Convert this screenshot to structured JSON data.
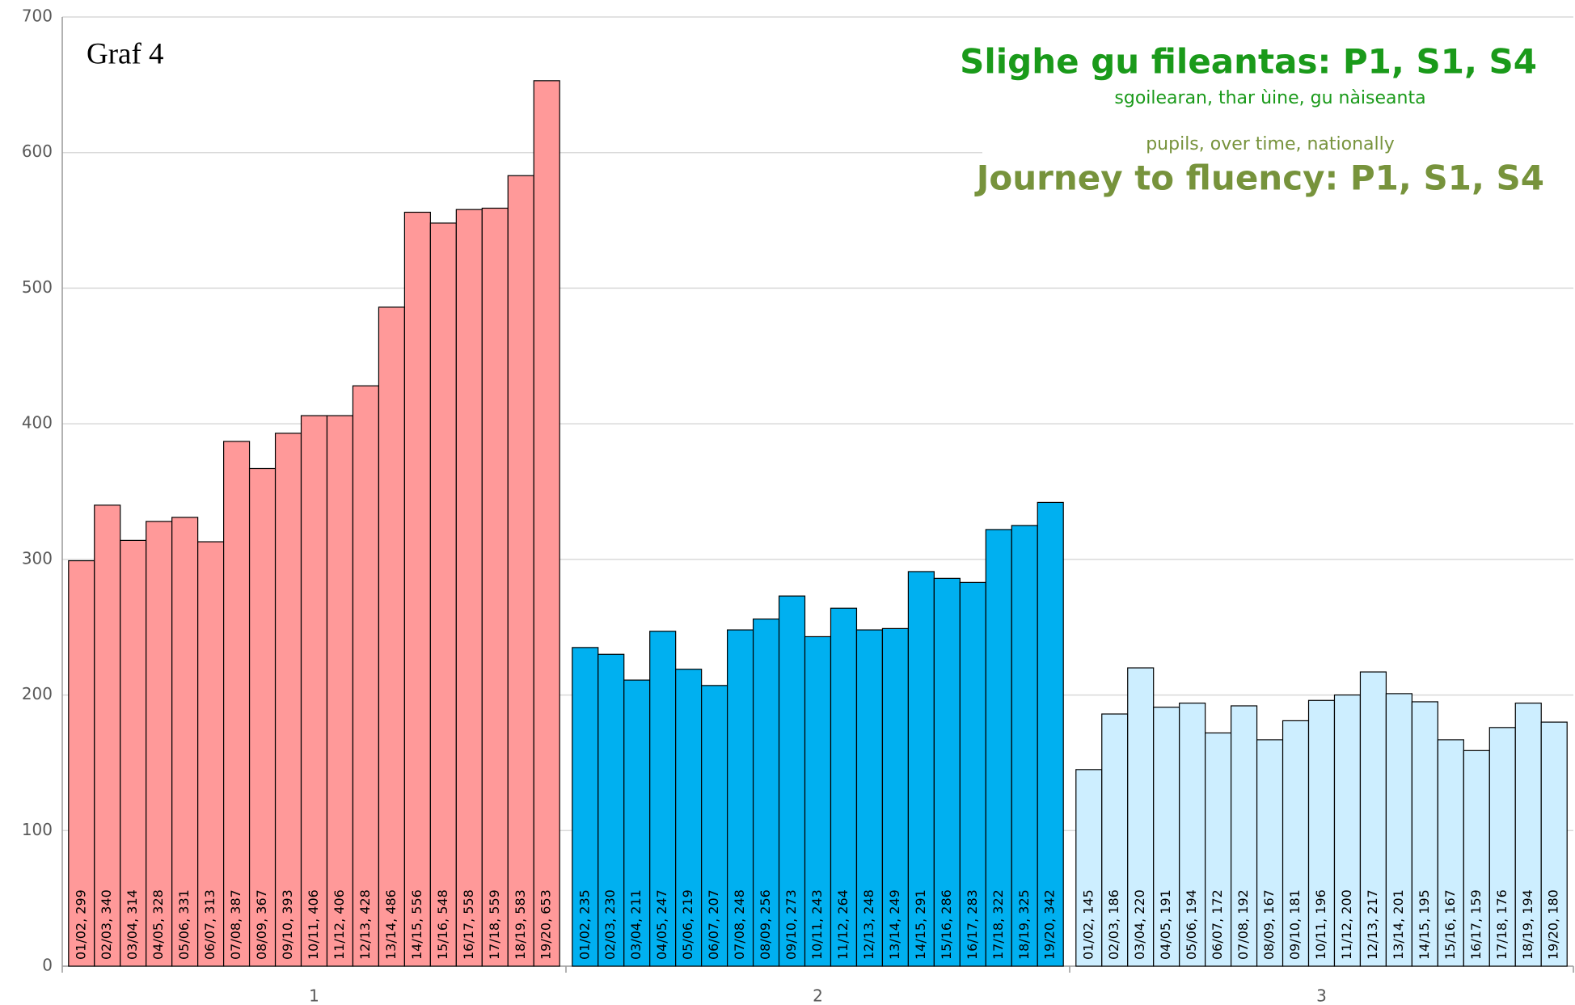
{
  "chart_data": {
    "type": "bar",
    "corner_label": "Graf 4",
    "title": "Slighe gu fileantas: P1, S1, S4",
    "subtitle": "sgoilearan, thar ùine, gu nàiseanta",
    "subtitle_en": "pupils, over time, nationally",
    "title_en": "Journey to fluency: P1, S1, S4",
    "categories": [
      "1",
      "2",
      "3"
    ],
    "ylim": [
      0,
      700
    ],
    "yticks": [
      0,
      100,
      200,
      300,
      400,
      500,
      600,
      700
    ],
    "grid": true,
    "groups": [
      {
        "color": "#ff9999",
        "values": [
          299,
          340,
          314,
          328,
          331,
          313,
          387,
          367,
          393,
          406,
          406,
          428,
          486,
          556,
          548,
          558,
          559,
          583,
          653
        ],
        "value_labels": [
          "01/02, 299",
          "02/03, 340",
          "03/04, 314",
          "04/05, 328",
          "05/06, 331",
          "06/07, 313",
          "07/08, 387",
          "08/09, 367",
          "09/10, 393",
          "10/11, 406",
          "11/12, 406",
          "12/13, 428",
          "13/14, 486",
          "14/15, 556",
          "15/16, 548",
          "16/17, 558",
          "17/18, 559",
          "18/19, 583",
          "19/20, 653"
        ]
      },
      {
        "color": "#00b0f0",
        "values": [
          235,
          230,
          211,
          247,
          219,
          207,
          248,
          256,
          273,
          243,
          264,
          248,
          249,
          291,
          286,
          283,
          322,
          325,
          342
        ],
        "value_labels": [
          "01/02, 235",
          "02/03, 230",
          "03/04, 211",
          "04/05, 247",
          "05/06, 219",
          "06/07, 207",
          "07/08, 248",
          "08/09, 256",
          "09/10, 273",
          "10/11, 243",
          "11/12, 264",
          "12/13, 248",
          "13/14, 249",
          "14/15, 291",
          "15/16, 286",
          "16/17, 283",
          "17/18, 322",
          "18/19, 325",
          "19/20, 342"
        ]
      },
      {
        "color": "#cdeeff",
        "values": [
          145,
          186,
          220,
          191,
          194,
          172,
          192,
          167,
          181,
          196,
          200,
          217,
          201,
          195,
          167,
          159,
          176,
          194,
          180
        ],
        "value_labels": [
          "01/02, 145",
          "02/03, 186",
          "03/04, 220",
          "04/05, 191",
          "05/06, 194",
          "06/07, 172",
          "07/08, 192",
          "08/09, 167",
          "09/10, 181",
          "10/11, 196",
          "11/12, 200",
          "12/13, 217",
          "13/14, 201",
          "14/15, 195",
          "15/16, 167",
          "16/17, 159",
          "17/18, 176",
          "18/19, 194",
          "19/20, 180"
        ]
      }
    ]
  }
}
